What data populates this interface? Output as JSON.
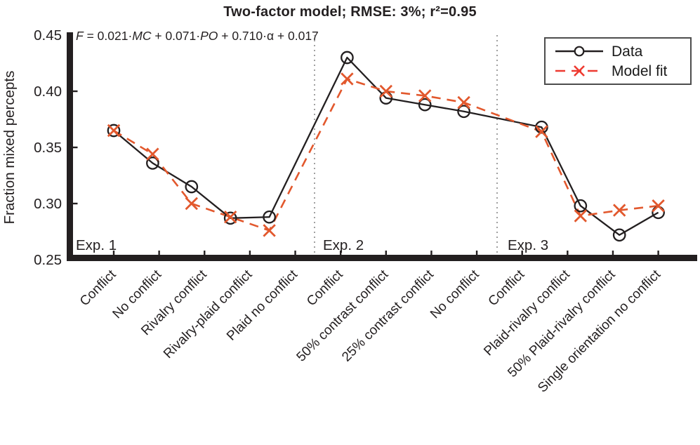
{
  "figure": {
    "title": "Two-factor model; RMSE: 3%; r²=0.95",
    "formula": {
      "full": "F = 0.021·MC + 0.071·PO + 0.710·α + 0.017",
      "parts": [
        {
          "text": "F"
        },
        {
          "text": " = 0.021·"
        },
        {
          "text": "MC"
        },
        {
          "text": " + 0.071·"
        },
        {
          "text": "PO"
        },
        {
          "text": " + 0.710·α + 0.017"
        }
      ]
    }
  },
  "chart_data": {
    "type": "line",
    "title": "Two-factor model; RMSE: 3%; r²=0.95",
    "xlabel": "",
    "ylabel": "Fraction mixed percepts",
    "ylim": [
      0.25,
      0.45
    ],
    "yticks": [
      "0.25",
      "0.30",
      "0.35",
      "0.40",
      "0.45"
    ],
    "grid": false,
    "legend_position": "top-right",
    "categories": [
      "Conflict",
      "No conflict",
      "Rivalry conflict",
      "Rivalry-plaid conflict",
      "Plaid no conflict",
      "Conflict",
      "50% contrast conflict",
      "25% contrast conflict",
      "No conflict",
      "Conflict",
      "Plaid-rivalry conflict",
      "50% Plaid-rivalry conflict",
      "Single orientation no conflict"
    ],
    "series": [
      {
        "name": "Data",
        "marker": "circle",
        "line_style": "solid",
        "color": "#231f20",
        "values": [
          0.365,
          0.336,
          0.315,
          0.287,
          0.288,
          0.43,
          0.394,
          0.388,
          0.382,
          0.368,
          0.298,
          0.272,
          0.292
        ]
      },
      {
        "name": "Model fit",
        "marker": "x",
        "line_style": "dashed",
        "color": "#e2582d",
        "values": [
          0.365,
          0.344,
          0.3,
          0.288,
          0.276,
          0.411,
          0.4,
          0.396,
          0.39,
          0.364,
          0.289,
          0.294,
          0.298
        ]
      }
    ],
    "groups": [
      {
        "label": "Exp. 1",
        "start": 0,
        "end": 4
      },
      {
        "label": "Exp. 2",
        "start": 5,
        "end": 8
      },
      {
        "label": "Exp. 3",
        "start": 9,
        "end": 12
      }
    ],
    "annotations": {
      "formula": "F = 0.021·MC + 0.071·PO + 0.710·α + 0.017"
    }
  },
  "colors": {
    "axis": "#231f20",
    "data_series": "#231f20",
    "model_series": "#e2582d",
    "legend_model": "#ee3a31",
    "divider": "#a0a0a0",
    "text": "#231f20"
  }
}
